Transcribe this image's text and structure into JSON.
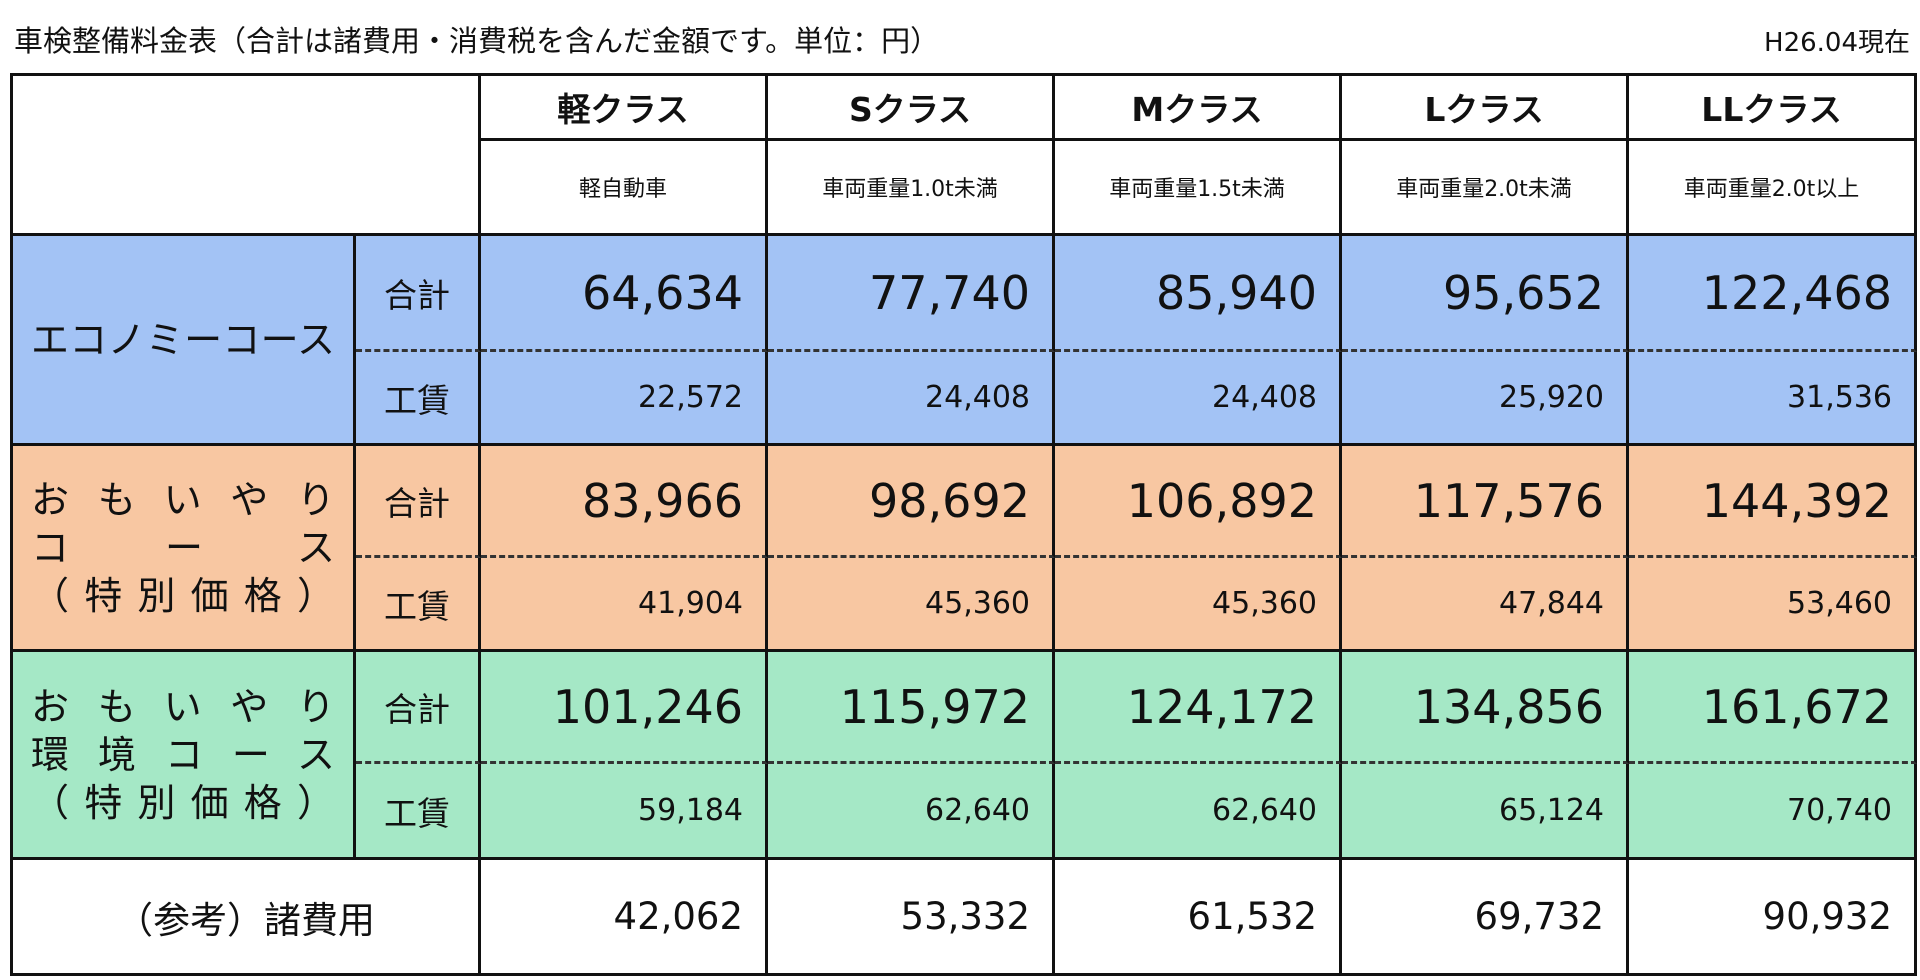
{
  "header": {
    "title": "車検整備料金表（合計は諸費用・消費税を含んだ金額です。単位：円）",
    "date": "H26.04現在"
  },
  "table": {
    "total_label": "合計",
    "labor_label": "工賃",
    "classes": [
      {
        "name": "軽クラス",
        "note": "軽自動車"
      },
      {
        "name": "Sクラス",
        "note": "車両重量1.0t未満"
      },
      {
        "name": "Mクラス",
        "note": "車両重量1.5t未満"
      },
      {
        "name": "Lクラス",
        "note": "車両重量2.0t未満"
      },
      {
        "name": "LLクラス",
        "note": "車両重量2.0t以上"
      }
    ],
    "courses": [
      {
        "label": [
          "エコノミーコース"
        ],
        "color": "#a3c3f5",
        "total": [
          "64,634",
          "77,740",
          "85,940",
          "95,652",
          "122,468"
        ],
        "labor": [
          "22,572",
          "24,408",
          "24,408",
          "25,920",
          "31,536"
        ]
      },
      {
        "label": [
          "おもいやり",
          "コース",
          "（特別価格）"
        ],
        "color": "#f8c7a2",
        "total": [
          "83,966",
          "98,692",
          "106,892",
          "117,576",
          "144,392"
        ],
        "labor": [
          "41,904",
          "45,360",
          "45,360",
          "47,844",
          "53,460"
        ]
      },
      {
        "label": [
          "おもいやり",
          "環境コース",
          "（特別価格）"
        ],
        "color": "#a5e8c6",
        "total": [
          "101,246",
          "115,972",
          "124,172",
          "134,856",
          "161,672"
        ],
        "labor": [
          "59,184",
          "62,640",
          "62,640",
          "65,124",
          "70,740"
        ]
      }
    ],
    "reference": {
      "label": "（参考）諸費用",
      "values": [
        "42,062",
        "53,332",
        "61,532",
        "69,732",
        "90,932"
      ]
    }
  }
}
